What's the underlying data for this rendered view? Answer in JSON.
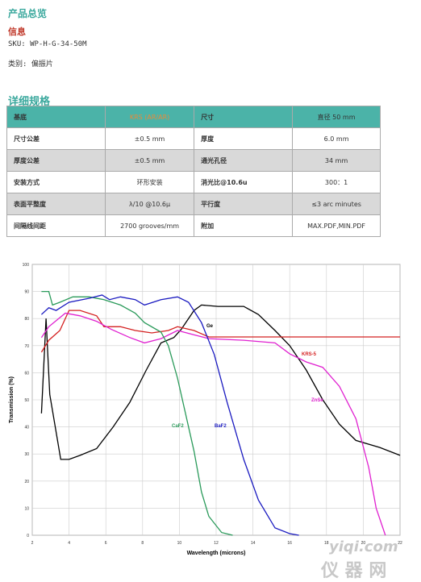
{
  "header": {
    "title": "产品总览"
  },
  "info": {
    "title": "信息",
    "sku": "SKU: WP-H-G-34-50M",
    "category": "类别: 偏振片"
  },
  "specs": {
    "title": "详细规格"
  },
  "table": {
    "rows": [
      [
        "基底",
        "KRS (AR/AR)",
        "尺寸",
        "直径 50 mm"
      ],
      [
        "尺寸公差",
        "±0.5 mm",
        "厚度",
        "6.0 mm"
      ],
      [
        "厚度公差",
        "±0.5 mm",
        "通光孔径",
        "34 mm"
      ],
      [
        "安装方式",
        "环形安装",
        "消光比@10.6u",
        "300：1"
      ],
      [
        "表面平整度",
        "λ/10 @10.6μ",
        "平行度",
        "≤3 arc minutes"
      ],
      [
        "间隔线间距",
        "2700 grooves/mm",
        "附加",
        "MAX.PDF,MIN.PDF"
      ]
    ]
  },
  "chart_data": {
    "type": "line",
    "xlabel": "Wavelength (microns)",
    "ylabel": "Transmission (%)",
    "xlim": [
      2,
      22
    ],
    "xticks": [
      2,
      4,
      6,
      8,
      10,
      12,
      14,
      16,
      18,
      20,
      22
    ],
    "ylim": [
      0,
      100
    ],
    "yticks": [
      0,
      10,
      20,
      30,
      40,
      50,
      60,
      70,
      80,
      90,
      100
    ],
    "grid": true,
    "series": [
      {
        "name": "Ge",
        "color": "#000000",
        "x": [
          2.5,
          2.75,
          2.95,
          3.55,
          4,
          4.6,
          5.5,
          6.4,
          7.3,
          8.2,
          9,
          9.7,
          10.1,
          10.8,
          11.2,
          12.1,
          13.5,
          14.3,
          15.2,
          16,
          16.9,
          17.8,
          18.7,
          19.6,
          20.9,
          22
        ],
        "values": [
          45,
          80,
          52,
          28,
          28,
          29.5,
          32,
          40,
          49,
          61,
          71,
          73,
          76,
          83,
          85,
          84.5,
          84.5,
          81.5,
          75.6,
          70,
          61,
          50,
          41,
          35,
          32.4,
          29.5
        ]
      },
      {
        "name": "KRS-5",
        "color": "#d42020",
        "x": [
          2.5,
          2.9,
          3.5,
          4,
          4.6,
          5.5,
          5.9,
          6.8,
          7.6,
          8.5,
          9.4,
          9.9,
          10.8,
          11.6,
          22
        ],
        "values": [
          67.6,
          72,
          75.6,
          83,
          83,
          81,
          77,
          77,
          75.6,
          74.7,
          75.6,
          77,
          75.6,
          73.2,
          73.2
        ]
      },
      {
        "name": "ZnSe",
        "color": "#e020d0",
        "x": [
          2.5,
          2.9,
          3.8,
          4.6,
          5.5,
          6.3,
          7.3,
          8.1,
          9,
          9.9,
          10.8,
          11.6,
          13.5,
          15.2,
          16,
          16.9,
          17.8,
          18.7,
          19.6,
          20.3,
          20.7,
          21.2
        ],
        "values": [
          73,
          77,
          82,
          81,
          79,
          76,
          73,
          71,
          72.6,
          75.6,
          74,
          72.6,
          72,
          71,
          67,
          64,
          62,
          55,
          43,
          25,
          10,
          0
        ]
      },
      {
        "name": "CaF2",
        "color": "#2a9a5a",
        "x": [
          2.5,
          2.9,
          3.1,
          3.5,
          4.2,
          5.1,
          5.9,
          6.8,
          7.6,
          8.1,
          9,
          9.4,
          9.9,
          10.3,
          10.8,
          11.2,
          11.6,
          12.3,
          12.9
        ],
        "values": [
          90,
          90,
          85,
          86,
          88,
          88,
          87,
          85,
          82,
          78.5,
          75,
          70,
          58,
          46,
          31,
          16,
          7,
          1,
          0
        ]
      },
      {
        "name": "BaF2",
        "color": "#1a1ac0",
        "x": [
          2.5,
          2.9,
          3.3,
          4,
          5.1,
          5.8,
          6.2,
          6.8,
          7.6,
          8.1,
          9,
          9.9,
          10.5,
          11.2,
          11.9,
          12.6,
          13.5,
          14.3,
          15.2,
          16,
          16.5
        ],
        "values": [
          81.5,
          84,
          83,
          86,
          87.5,
          88.7,
          87,
          88,
          87,
          85,
          87,
          88,
          86,
          78.5,
          66.7,
          49,
          28,
          13,
          2.7,
          0.6,
          0
        ]
      }
    ]
  },
  "watermark": {
    "site": "yiqi.com",
    "brand": "仪 器 网"
  }
}
